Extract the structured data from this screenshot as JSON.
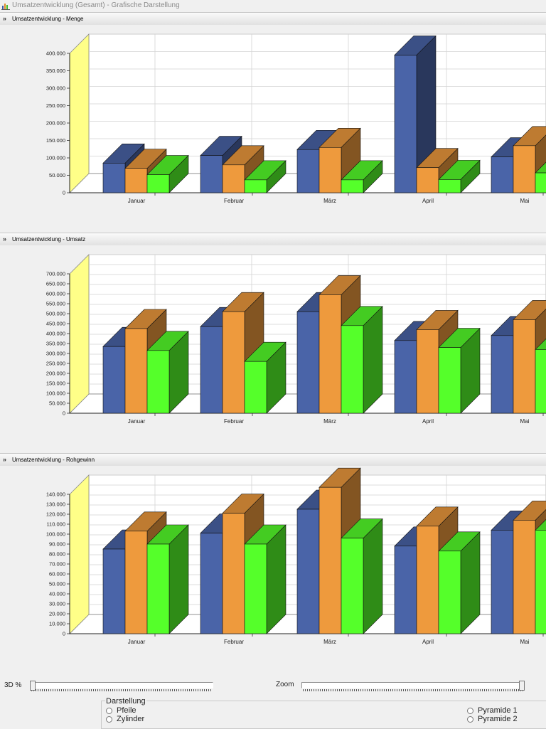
{
  "window": {
    "title": "Umsatzentwicklung (Gesamt) - Grafische Darstellung"
  },
  "colors": {
    "blue": "#4a64a8",
    "orange": "#ee9a3d",
    "green": "#55ff2a",
    "wall": "#ffff88"
  },
  "panels": [
    {
      "title": "Umsatzentwicklung - Menge",
      "icon": "double-chevron-down-icon"
    },
    {
      "title": "Umsatzentwicklung - Umsatz",
      "icon": "double-chevron-down-icon"
    },
    {
      "title": "Umsatzentwicklung - Rohgewinn",
      "icon": "double-chevron-down-icon"
    }
  ],
  "chart_data": [
    {
      "type": "bar",
      "title": "Umsatzentwicklung - Menge",
      "categories": [
        "Januar",
        "Februar",
        "März",
        "April",
        "Mai"
      ],
      "yticks": [
        "0",
        "50.000",
        "100.000",
        "150.000",
        "200.000",
        "250.000",
        "300.000",
        "350.000",
        "400.000"
      ],
      "ylim": [
        0,
        400000
      ],
      "grid": true,
      "series": [
        {
          "values": [
            85000,
            107000,
            124000,
            395000,
            103000
          ]
        },
        {
          "values": [
            70000,
            80000,
            130000,
            72000,
            135000
          ]
        },
        {
          "values": [
            52000,
            37000,
            37000,
            38000,
            57000
          ]
        }
      ]
    },
    {
      "type": "bar",
      "title": "Umsatzentwicklung - Umsatz",
      "categories": [
        "Januar",
        "Februar",
        "März",
        "April",
        "Mai"
      ],
      "yticks": [
        "0",
        "50.000",
        "100.000",
        "150.000",
        "200.000",
        "250.000",
        "300.000",
        "350.000",
        "400.000",
        "450.000",
        "500.000",
        "550.000",
        "600.000",
        "650.000",
        "700.000"
      ],
      "ylim": [
        0,
        700000
      ],
      "grid": true,
      "series": [
        {
          "values": [
            335000,
            435000,
            510000,
            365000,
            390000
          ]
        },
        {
          "values": [
            425000,
            510000,
            595000,
            420000,
            470000
          ]
        },
        {
          "values": [
            315000,
            260000,
            440000,
            330000,
            320000
          ]
        }
      ]
    },
    {
      "type": "bar",
      "title": "Umsatzentwicklung - Rohgewinn",
      "categories": [
        "Januar",
        "Februar",
        "März",
        "April",
        "Mai"
      ],
      "yticks": [
        "0",
        "10.000",
        "20.000",
        "30.000",
        "40.000",
        "50.000",
        "60.000",
        "70.000",
        "80.000",
        "90.000",
        "100.000",
        "110.000",
        "120.000",
        "130.000",
        "140.000"
      ],
      "ylim": [
        0,
        140000
      ],
      "grid": true,
      "series": [
        {
          "values": [
            85000,
            101000,
            125000,
            88000,
            104000
          ]
        },
        {
          "values": [
            103000,
            121000,
            147000,
            108000,
            114000
          ]
        },
        {
          "values": [
            90000,
            90000,
            96000,
            83000,
            104000
          ]
        }
      ]
    }
  ],
  "controls": {
    "depth_label": "3D %",
    "depth_value": 0.0,
    "zoom_label": "Zoom",
    "zoom_value": 1.0,
    "group_label": "Darstellung",
    "options": [
      "Pfeile",
      "Zylinder",
      "Pyramide 1",
      "Pyramide 2"
    ]
  }
}
